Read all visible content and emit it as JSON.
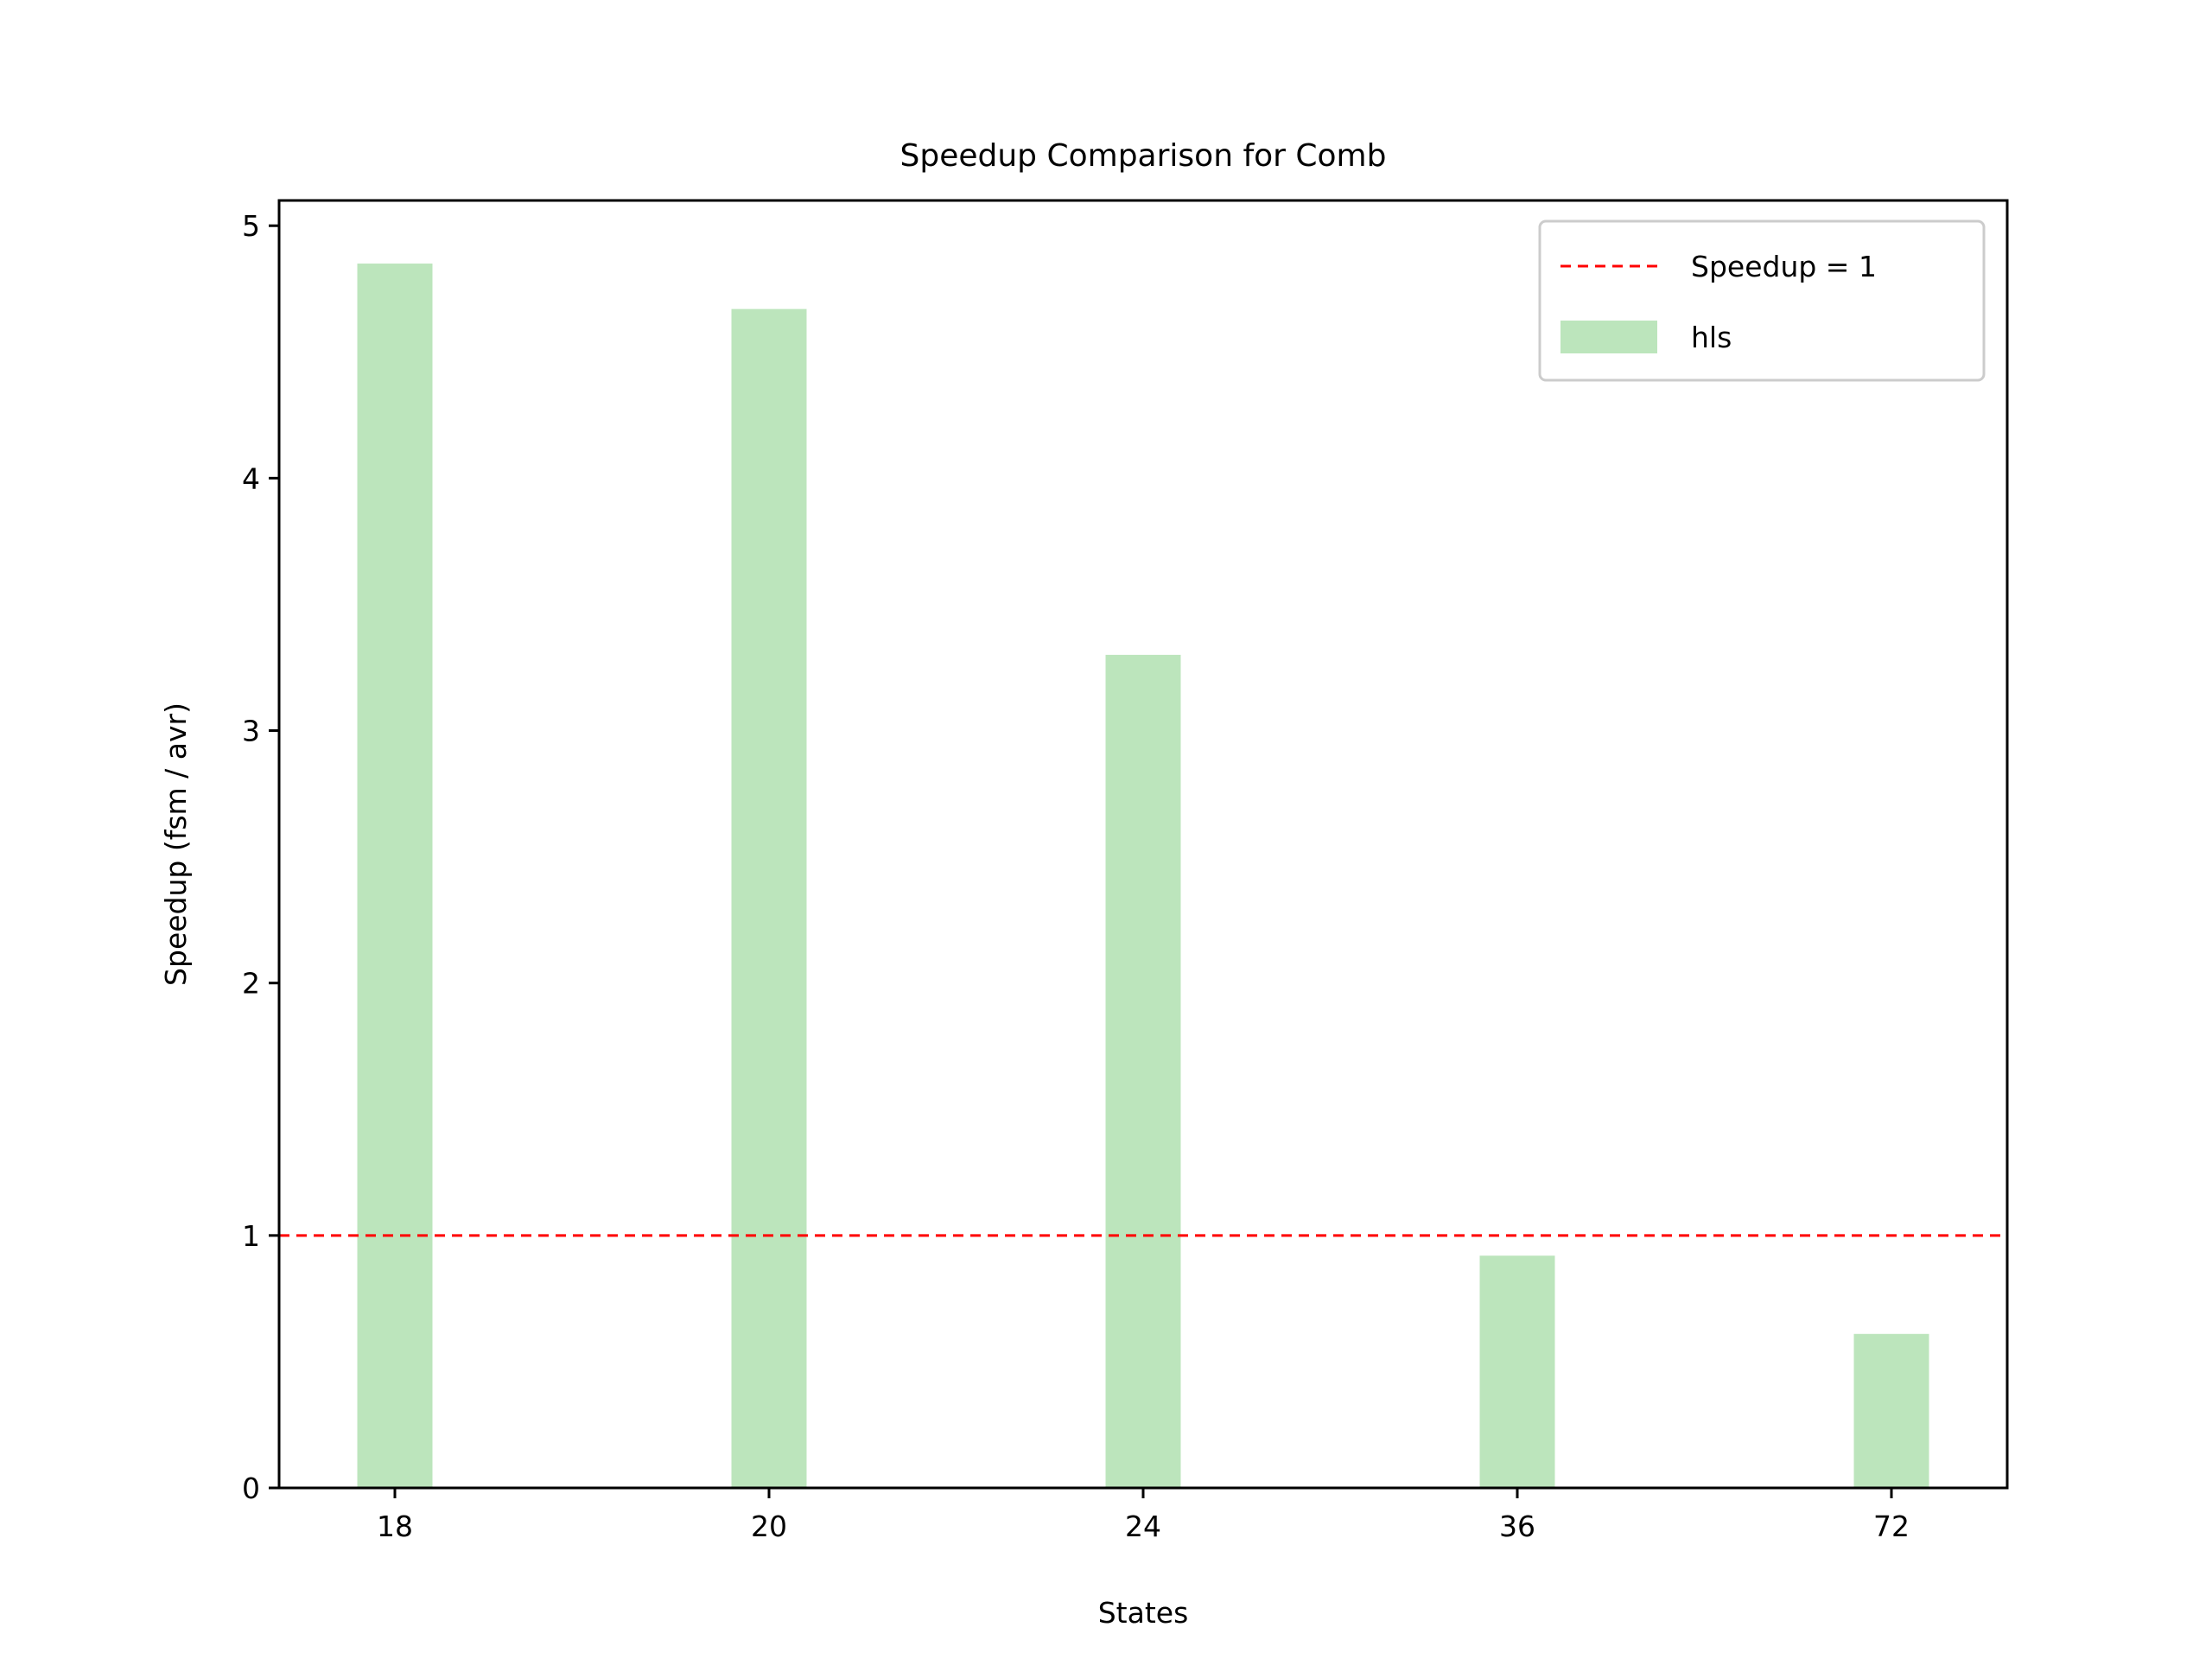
{
  "chart_data": {
    "type": "bar",
    "title": "Speedup Comparison for Comb",
    "xlabel": "States",
    "ylabel": "Speedup (fsm / avr)",
    "categories": [
      "18",
      "20",
      "24",
      "36",
      "72"
    ],
    "series": [
      {
        "name": "hls",
        "values": [
          4.85,
          4.67,
          3.3,
          0.92,
          0.61
        ],
        "color": "#bce5bc"
      }
    ],
    "reference_line": {
      "name": "Speedup = 1",
      "y": 1,
      "color": "#ff0000",
      "style": "dashed"
    },
    "ylim": [
      0,
      5.1
    ],
    "yticks": [
      0,
      1,
      2,
      3,
      4,
      5
    ],
    "grid": false,
    "legend_position": "top-right"
  }
}
